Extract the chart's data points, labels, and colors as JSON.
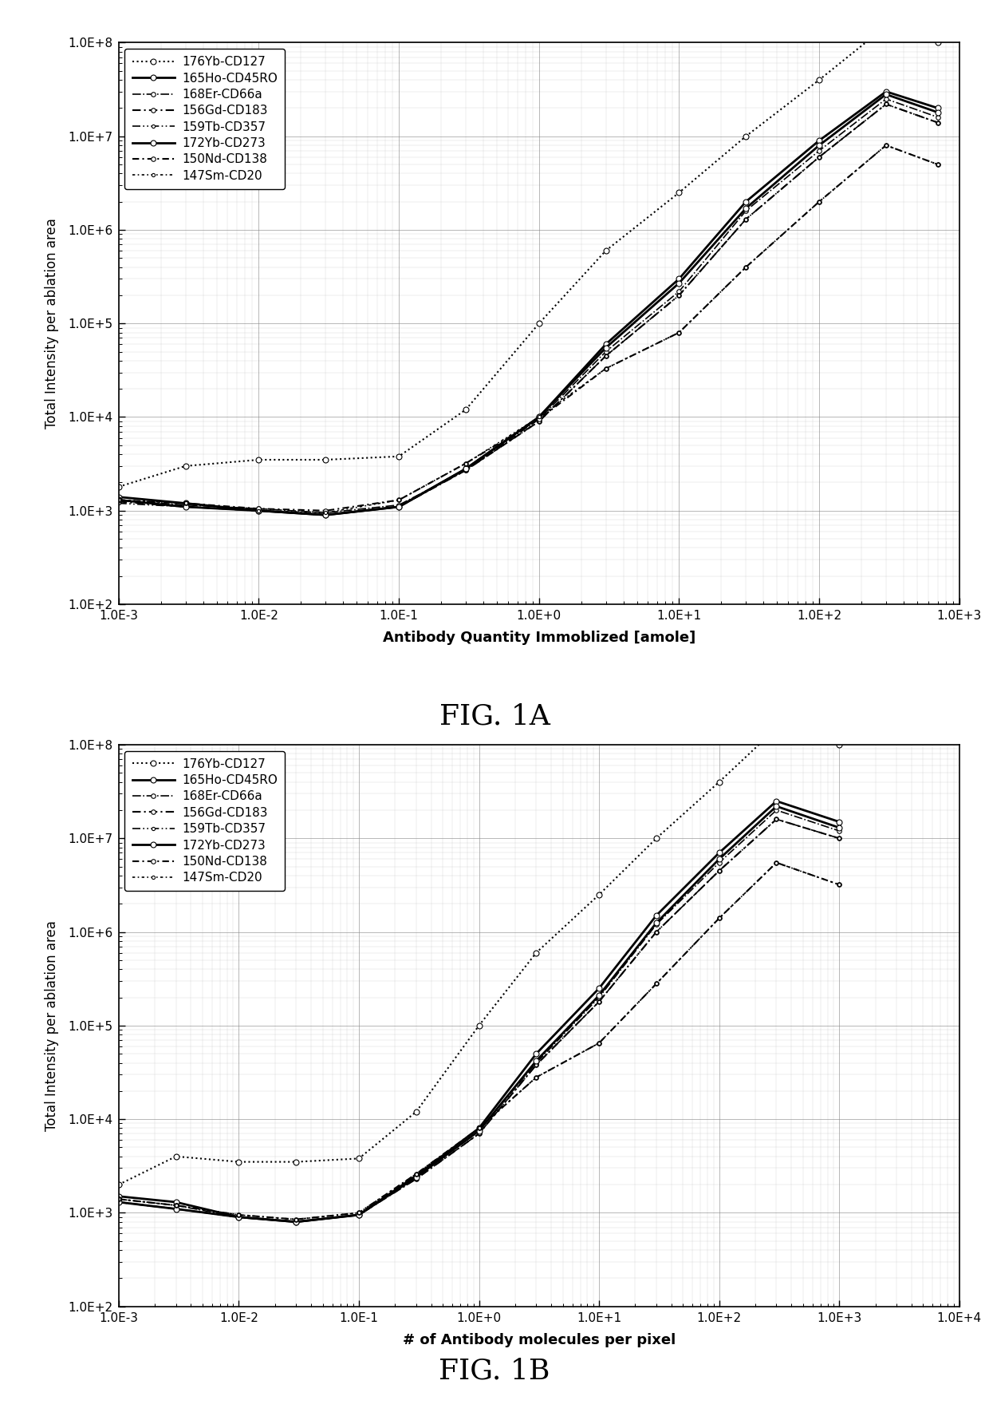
{
  "fig1a": {
    "title": "FIG. 1A",
    "xlabel": "Antibody Quantity Immoblized [amole]",
    "ylabel": "Total Intensity per ablation area",
    "xlim": [
      0.001,
      1000
    ],
    "ylim": [
      100,
      100000000.0
    ],
    "series": [
      {
        "label": "176Yb-CD127",
        "style_key": "dotted_circle",
        "x": [
          0.001,
          0.003,
          0.01,
          0.03,
          0.1,
          0.3,
          1,
          3,
          10,
          30,
          100,
          300,
          700
        ],
        "y": [
          1800,
          3000,
          3500,
          3500,
          3800,
          12000,
          100000,
          600000,
          2500000,
          10000000,
          40000000,
          150000000.0,
          100000000.0
        ]
      },
      {
        "label": "165Ho-CD45RO",
        "style_key": "solid_thick_circle",
        "x": [
          0.001,
          0.003,
          0.01,
          0.03,
          0.1,
          0.3,
          1,
          3,
          10,
          30,
          100,
          300,
          700
        ],
        "y": [
          1400,
          1200,
          1000,
          900,
          1100,
          2800,
          10000,
          60000,
          300000,
          2000000,
          9000000,
          30000000,
          20000000
        ]
      },
      {
        "label": "168Er-CD66a",
        "style_key": "dashdot_thin_circle",
        "x": [
          0.001,
          0.003,
          0.01,
          0.03,
          0.1,
          0.3,
          1,
          3,
          10,
          30,
          100,
          300,
          700
        ],
        "y": [
          1300,
          1150,
          1050,
          950,
          1150,
          2700,
          9500,
          50000,
          220000,
          1600000,
          7000000,
          25000000,
          16000000
        ]
      },
      {
        "label": "156Gd-CD183",
        "style_key": "dash_dot_circle",
        "x": [
          0.001,
          0.003,
          0.01,
          0.03,
          0.1,
          0.3,
          1,
          3,
          10,
          30,
          100,
          300,
          700
        ],
        "y": [
          1250,
          1100,
          1000,
          900,
          1100,
          2700,
          9000,
          45000,
          200000,
          1300000,
          6000000,
          22000000,
          14000000
        ]
      },
      {
        "label": "159Tb-CD357",
        "style_key": "long_dash_dot_dot_circle",
        "x": [
          0.001,
          0.003,
          0.01,
          0.03,
          0.1,
          0.3,
          1,
          3,
          10,
          30,
          100,
          300,
          700
        ],
        "y": [
          1200,
          1100,
          1000,
          900,
          1100,
          2700,
          9000,
          45000,
          200000,
          1300000,
          6000000,
          22000000,
          14000000
        ]
      },
      {
        "label": "172Yb-CD273",
        "style_key": "solid_thick_circle2",
        "x": [
          0.001,
          0.003,
          0.01,
          0.03,
          0.1,
          0.3,
          1,
          3,
          10,
          30,
          100,
          300,
          700
        ],
        "y": [
          1300,
          1100,
          1000,
          900,
          1100,
          2800,
          10000,
          55000,
          270000,
          1700000,
          8000000,
          28000000,
          18000000
        ]
      },
      {
        "label": "150Nd-CD138",
        "style_key": "medium_dash_dot_circle",
        "x": [
          0.001,
          0.003,
          0.01,
          0.03,
          0.1,
          0.3,
          1,
          3,
          10,
          30,
          100,
          300,
          700
        ],
        "y": [
          1300,
          1200,
          1050,
          1000,
          1300,
          3200,
          9500,
          33000,
          80000,
          400000,
          2000000,
          8000000,
          5000000
        ]
      },
      {
        "label": "147Sm-CD20",
        "style_key": "fine_dash_dot_circle",
        "x": [
          0.001,
          0.003,
          0.01,
          0.03,
          0.1,
          0.3,
          1,
          3,
          10,
          30,
          100,
          300,
          700
        ],
        "y": [
          1300,
          1200,
          1000,
          950,
          1300,
          3200,
          10000,
          33000,
          80000,
          400000,
          2000000,
          8000000,
          5000000
        ]
      }
    ]
  },
  "fig1b": {
    "title": "FIG. 1B",
    "xlabel": "# of Antibody molecules per pixel",
    "ylabel": "Total Intensity per ablation area",
    "xlim": [
      0.001,
      10000
    ],
    "ylim": [
      100,
      100000000.0
    ],
    "series": [
      {
        "label": "176Yb-CD127",
        "style_key": "dotted_circle",
        "x": [
          0.001,
          0.003,
          0.01,
          0.03,
          0.1,
          0.3,
          1,
          3,
          10,
          30,
          100,
          300,
          1000
        ],
        "y": [
          2000,
          4000,
          3500,
          3500,
          3800,
          12000,
          100000,
          600000,
          2500000,
          10000000,
          40000000,
          150000000.0,
          100000000.0
        ]
      },
      {
        "label": "165Ho-CD45RO",
        "style_key": "solid_thick_circle",
        "x": [
          0.001,
          0.003,
          0.01,
          0.03,
          0.1,
          0.3,
          1,
          3,
          10,
          30,
          100,
          300,
          1000
        ],
        "y": [
          1500,
          1300,
          900,
          800,
          950,
          2500,
          8000,
          50000,
          250000,
          1500000,
          7000000,
          25000000,
          15000000
        ]
      },
      {
        "label": "168Er-CD66a",
        "style_key": "dashdot_thin_circle",
        "x": [
          0.001,
          0.003,
          0.01,
          0.03,
          0.1,
          0.3,
          1,
          3,
          10,
          30,
          100,
          300,
          1000
        ],
        "y": [
          1400,
          1200,
          900,
          800,
          950,
          2400,
          7500,
          40000,
          200000,
          1200000,
          5500000,
          20000000,
          12000000
        ]
      },
      {
        "label": "156Gd-CD183",
        "style_key": "dash_dot_circle",
        "x": [
          0.001,
          0.003,
          0.01,
          0.03,
          0.1,
          0.3,
          1,
          3,
          10,
          30,
          100,
          300,
          1000
        ],
        "y": [
          1300,
          1100,
          900,
          800,
          950,
          2300,
          7000,
          38000,
          180000,
          1000000,
          4500000,
          16000000,
          10000000
        ]
      },
      {
        "label": "159Tb-CD357",
        "style_key": "long_dash_dot_dot_circle",
        "x": [
          0.001,
          0.003,
          0.01,
          0.03,
          0.1,
          0.3,
          1,
          3,
          10,
          30,
          100,
          300,
          1000
        ],
        "y": [
          1300,
          1100,
          900,
          800,
          950,
          2300,
          7000,
          38000,
          180000,
          1000000,
          4500000,
          16000000,
          10000000
        ]
      },
      {
        "label": "172Yb-CD273",
        "style_key": "solid_thick_circle2",
        "x": [
          0.001,
          0.003,
          0.01,
          0.03,
          0.1,
          0.3,
          1,
          3,
          10,
          30,
          100,
          300,
          1000
        ],
        "y": [
          1300,
          1100,
          900,
          800,
          950,
          2400,
          7500,
          42000,
          210000,
          1250000,
          6000000,
          22000000,
          13000000
        ]
      },
      {
        "label": "150Nd-CD138",
        "style_key": "medium_dash_dot_circle",
        "x": [
          0.001,
          0.003,
          0.01,
          0.03,
          0.1,
          0.3,
          1,
          3,
          10,
          30,
          100,
          300,
          1000
        ],
        "y": [
          1400,
          1200,
          950,
          850,
          1000,
          2600,
          8000,
          28000,
          65000,
          280000,
          1400000,
          5500000,
          3200000
        ]
      },
      {
        "label": "147Sm-CD20",
        "style_key": "fine_dash_dot_circle",
        "x": [
          0.001,
          0.003,
          0.01,
          0.03,
          0.1,
          0.3,
          1,
          3,
          10,
          30,
          100,
          300,
          1000
        ],
        "y": [
          1400,
          1200,
          950,
          850,
          1000,
          2600,
          8000,
          28000,
          65000,
          280000,
          1400000,
          5500000,
          3200000
        ]
      }
    ]
  },
  "line_styles": {
    "dotted_circle": {
      "ls": ":",
      "lw": 1.5,
      "ms": 5
    },
    "solid_thick_circle": {
      "ls": "-",
      "lw": 2.0,
      "ms": 5
    },
    "dashdot_thin_circle": {
      "ls": "-.",
      "lw": 1.2,
      "ms": 4
    },
    "dash_dot_circle": {
      "ls": [
        5,
        2,
        1,
        2
      ],
      "lw": 1.5,
      "ms": 4
    },
    "long_dash_dot_dot_circle": {
      "ls": [
        6,
        2,
        1,
        2,
        1,
        2
      ],
      "lw": 1.2,
      "ms": 3
    },
    "solid_thick_circle2": {
      "ls": "-",
      "lw": 2.0,
      "ms": 5
    },
    "medium_dash_dot_circle": {
      "ls": [
        4,
        2,
        1,
        2
      ],
      "lw": 1.5,
      "ms": 4
    },
    "fine_dash_dot_circle": {
      "ls": [
        2,
        2,
        1,
        2
      ],
      "lw": 1.2,
      "ms": 3
    }
  },
  "background_color": "#ffffff",
  "grid_color": "#888888",
  "label_fontsize": 13,
  "tick_fontsize": 11,
  "legend_fontsize": 11,
  "caption_fontsize": 26
}
